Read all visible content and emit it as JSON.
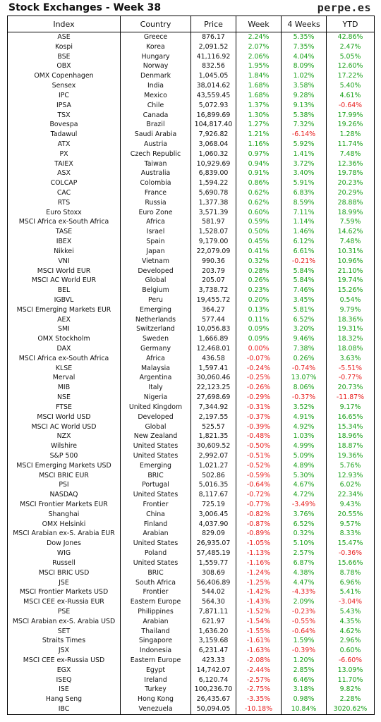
{
  "header": {
    "title": "Stock Exchanges - Week 38",
    "brand": "perpe.es"
  },
  "chart_data": {
    "type": "table",
    "columns": [
      "Index",
      "Country",
      "Price",
      "Week",
      "4 Weeks",
      "YTD"
    ],
    "rows": [
      [
        "ASE",
        "Greece",
        "876.17",
        "2.24%",
        "5.35%",
        "42.86%"
      ],
      [
        "Kospi",
        "Korea",
        "2,091.52",
        "2.07%",
        "7.35%",
        "2.47%"
      ],
      [
        "BSE",
        "Hungary",
        "41,116.92",
        "2.06%",
        "4.04%",
        "5.05%"
      ],
      [
        "OBX",
        "Norway",
        "832.56",
        "1.95%",
        "8.09%",
        "12.60%"
      ],
      [
        "OMX Copenhagen",
        "Denmark",
        "1,045.05",
        "1.84%",
        "1.02%",
        "17.22%"
      ],
      [
        "Sensex",
        "India",
        "38,014.62",
        "1.68%",
        "3.58%",
        "5.40%"
      ],
      [
        "IPC",
        "Mexico",
        "43,559.45",
        "1.68%",
        "9.28%",
        "4.61%"
      ],
      [
        "IPSA",
        "Chile",
        "5,072.93",
        "1.37%",
        "9.13%",
        "-0.64%"
      ],
      [
        "TSX",
        "Canada",
        "16,899.69",
        "1.30%",
        "5.38%",
        "17.99%"
      ],
      [
        "Bovespa",
        "Brazil",
        "104,817.40",
        "1.27%",
        "7.32%",
        "19.26%"
      ],
      [
        "Tadawul",
        "Saudi Arabia",
        "7,926.82",
        "1.21%",
        "-6.14%",
        "1.28%"
      ],
      [
        "ATX",
        "Austria",
        "3,068.04",
        "1.16%",
        "5.92%",
        "11.74%"
      ],
      [
        "PX",
        "Czech Republic",
        "1,060.32",
        "0.97%",
        "1.41%",
        "7.48%"
      ],
      [
        "TAIEX",
        "Taiwan",
        "10,929.69",
        "0.94%",
        "3.72%",
        "12.36%"
      ],
      [
        "ASX",
        "Australia",
        "6,839.00",
        "0.91%",
        "3.40%",
        "19.78%"
      ],
      [
        "COLCAP",
        "Colombia",
        "1,594.22",
        "0.86%",
        "5.91%",
        "20.23%"
      ],
      [
        "CAC",
        "France",
        "5,690.78",
        "0.62%",
        "6.83%",
        "20.29%"
      ],
      [
        "RTS",
        "Russia",
        "1,377.38",
        "0.62%",
        "8.59%",
        "28.88%"
      ],
      [
        "Euro Stoxx",
        "Euro Zone",
        "3,571.39",
        "0.60%",
        "7.11%",
        "18.99%"
      ],
      [
        "MSCI Africa ex-South Africa",
        "Africa",
        "581.97",
        "0.59%",
        "1.14%",
        "7.59%"
      ],
      [
        "TASE",
        "Israel",
        "1,528.07",
        "0.50%",
        "1.46%",
        "14.62%"
      ],
      [
        "IBEX",
        "Spain",
        "9,179.00",
        "0.45%",
        "6.12%",
        "7.48%"
      ],
      [
        "Nikkei",
        "Japan",
        "22,079.09",
        "0.41%",
        "6.61%",
        "10.31%"
      ],
      [
        "VNI",
        "Vietnam",
        "990.36",
        "0.32%",
        "-0.21%",
        "10.96%"
      ],
      [
        "MSCI World EUR",
        "Developed",
        "203.79",
        "0.28%",
        "5.84%",
        "21.10%"
      ],
      [
        "MSCI AC World EUR",
        "Global",
        "205.07",
        "0.26%",
        "5.84%",
        "19.74%"
      ],
      [
        "BEL",
        "Belgium",
        "3,738.72",
        "0.23%",
        "7.46%",
        "15.26%"
      ],
      [
        "IGBVL",
        "Peru",
        "19,455.72",
        "0.20%",
        "3.45%",
        "0.54%"
      ],
      [
        "MSCI Emerging Markets EUR",
        "Emerging",
        "364.27",
        "0.13%",
        "5.81%",
        "9.79%"
      ],
      [
        "AEX",
        "Netherlands",
        "577.44",
        "0.11%",
        "6.52%",
        "18.36%"
      ],
      [
        "SMI",
        "Switzerland",
        "10,056.83",
        "0.09%",
        "3.20%",
        "19.31%"
      ],
      [
        "OMX Stockholm",
        "Sweden",
        "1,666.89",
        "0.09%",
        "9.46%",
        "18.32%"
      ],
      [
        "DAX",
        "Germany",
        "12,468.01",
        "0.00%",
        "7.38%",
        "18.08%"
      ],
      [
        "MSCI Africa ex-South Africa",
        "Africa",
        "436.58",
        "-0.07%",
        "0.26%",
        "3.63%"
      ],
      [
        "KLSE",
        "Malaysia",
        "1,597.41",
        "-0.24%",
        "-0.74%",
        "-5.51%"
      ],
      [
        "Merval",
        "Argentina",
        "30,060.46",
        "-0.25%",
        "13.07%",
        "-0.77%"
      ],
      [
        "MIB",
        "Italy",
        "22,123.25",
        "-0.26%",
        "8.06%",
        "20.73%"
      ],
      [
        "NSE",
        "Nigeria",
        "27,698.69",
        "-0.29%",
        "-0.37%",
        "-11.87%"
      ],
      [
        "FTSE",
        "United Kingdom",
        "7,344.92",
        "-0.31%",
        "3.52%",
        "9.17%"
      ],
      [
        "MSCI World USD",
        "Developed",
        "2,197.55",
        "-0.37%",
        "4.91%",
        "16.65%"
      ],
      [
        "MSCI AC World USD",
        "Global",
        "525.57",
        "-0.39%",
        "4.92%",
        "15.34%"
      ],
      [
        "NZX",
        "New Zealand",
        "1,821.35",
        "-0.48%",
        "1.03%",
        "18.96%"
      ],
      [
        "Wilshire",
        "United States",
        "30,609.52",
        "-0.50%",
        "4.99%",
        "18.87%"
      ],
      [
        "S&P 500",
        "United States",
        "2,992.07",
        "-0.51%",
        "5.09%",
        "19.36%"
      ],
      [
        "MSCI Emerging Markets USD",
        "Emerging",
        "1,021.27",
        "-0.52%",
        "4.89%",
        "5.76%"
      ],
      [
        "MSCI BRIC EUR",
        "BRIC",
        "502.86",
        "-0.59%",
        "5.30%",
        "12.93%"
      ],
      [
        "PSI",
        "Portugal",
        "5,016.35",
        "-0.64%",
        "4.67%",
        "6.02%"
      ],
      [
        "NASDAQ",
        "United States",
        "8,117.67",
        "-0.72%",
        "4.72%",
        "22.34%"
      ],
      [
        "MSCI Frontier Markets EUR",
        "Frontier",
        "725.19",
        "-0.77%",
        "-3.49%",
        "9.43%"
      ],
      [
        "Shanghai",
        "China",
        "3,006.45",
        "-0.82%",
        "3.76%",
        "20.55%"
      ],
      [
        "OMX Helsinki",
        "Finland",
        "4,037.90",
        "-0.87%",
        "6.52%",
        "9.57%"
      ],
      [
        "MSCI Arabian ex-S. Arabia EUR",
        "Arabian",
        "829.09",
        "-0.89%",
        "0.32%",
        "8.33%"
      ],
      [
        "Dow Jones",
        "United States",
        "26,935.07",
        "-1.05%",
        "5.10%",
        "15.47%"
      ],
      [
        "WIG",
        "Poland",
        "57,485.19",
        "-1.13%",
        "2.57%",
        "-0.36%"
      ],
      [
        "Russell",
        "United States",
        "1,559.77",
        "-1.16%",
        "6.87%",
        "15.66%"
      ],
      [
        "MSCI BRIC USD",
        "BRIC",
        "308.69",
        "-1.24%",
        "4.38%",
        "8.78%"
      ],
      [
        "JSE",
        "South Africa",
        "56,406.89",
        "-1.25%",
        "4.47%",
        "6.96%"
      ],
      [
        "MSCI Frontier Markets USD",
        "Frontier",
        "544.02",
        "-1.42%",
        "-4.33%",
        "5.41%"
      ],
      [
        "MSCI CEE ex-Russia EUR",
        "Eastern Europe",
        "564.30",
        "-1.43%",
        "2.09%",
        "-3.04%"
      ],
      [
        "PSE",
        "Philippines",
        "7,871.11",
        "-1.52%",
        "-0.23%",
        "5.43%"
      ],
      [
        "MSCI Arabian ex-S. Arabia USD",
        "Arabian",
        "621.97",
        "-1.54%",
        "-0.55%",
        "4.35%"
      ],
      [
        "SET",
        "Thailand",
        "1,636.20",
        "-1.55%",
        "-0.64%",
        "4.62%"
      ],
      [
        "Straits Times",
        "Singapore",
        "3,159.68",
        "-1.61%",
        "1.59%",
        "2.96%"
      ],
      [
        "JSX",
        "Indonesia",
        "6,231.47",
        "-1.63%",
        "-0.39%",
        "0.60%"
      ],
      [
        "MSCI CEE ex-Russia USD",
        "Eastern Europe",
        "423.33",
        "-2.08%",
        "1.20%",
        "-6.60%"
      ],
      [
        "EGX",
        "Egypt",
        "14,742.07",
        "-2.44%",
        "2.85%",
        "13.09%"
      ],
      [
        "ISEQ",
        "Ireland",
        "6,120.74",
        "-2.57%",
        "6.46%",
        "11.70%"
      ],
      [
        "ISE",
        "Turkey",
        "100,236.70",
        "-2.75%",
        "3.18%",
        "9.82%"
      ],
      [
        "Hang Seng",
        "Hong Kong",
        "26,435.67",
        "-3.35%",
        "0.98%",
        "2.28%"
      ],
      [
        "IBC",
        "Venezuela",
        "50,094.05",
        "-10.18%",
        "10.84%",
        "3020.62%"
      ]
    ]
  }
}
